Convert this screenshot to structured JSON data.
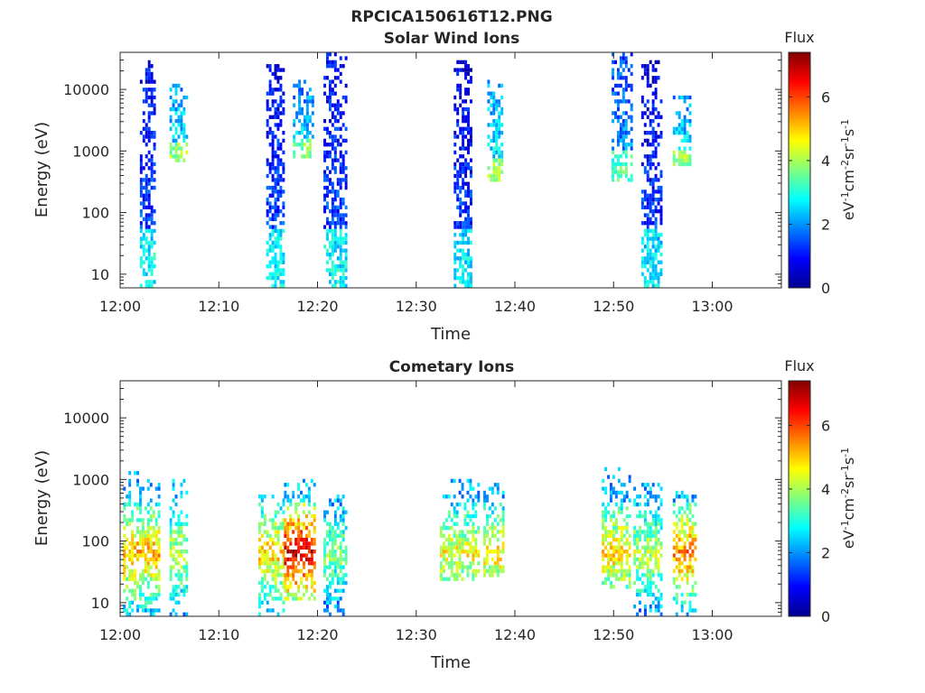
{
  "figure": {
    "title": "RPCICA150616T12.PNG"
  },
  "colorbar": {
    "label": "Flux",
    "ticks": [
      "0",
      "2",
      "4",
      "6"
    ],
    "tick_values": [
      0,
      2,
      4,
      6
    ],
    "range": [
      0,
      7.4
    ],
    "unit_parts": [
      "eV",
      "-1",
      "cm",
      "-2",
      "sr",
      "-1",
      "s",
      "-1"
    ]
  },
  "chart_data": [
    {
      "type": "heatmap",
      "title": "Solar Wind Ions",
      "xlabel": "Time",
      "ylabel": "Energy (eV)",
      "yscale": "log",
      "xlim": [
        0,
        67
      ],
      "ylim": [
        6,
        40000
      ],
      "x_ticks": [
        "12:00",
        "12:10",
        "12:20",
        "12:30",
        "12:40",
        "12:50",
        "13:00"
      ],
      "x_tick_values": [
        0,
        10,
        20,
        30,
        40,
        50,
        60
      ],
      "y_ticks": [
        "10",
        "100",
        "1000",
        "10000"
      ],
      "y_tick_values": [
        10,
        100,
        1000,
        10000
      ],
      "bursts": [
        {
          "t0": 2.0,
          "t1": 3.6,
          "emin": 6,
          "emax": 28000,
          "flux": 1.6
        },
        {
          "t0": 5.0,
          "t1": 6.8,
          "emin": 600,
          "emax": 11000,
          "flux": 2.8
        },
        {
          "t0": 14.8,
          "t1": 16.6,
          "emin": 6,
          "emax": 25000,
          "flux": 1.6
        },
        {
          "t0": 17.5,
          "t1": 19.5,
          "emin": 700,
          "emax": 14000,
          "flux": 2.6
        },
        {
          "t0": 20.6,
          "t1": 22.8,
          "emin": 6,
          "emax": 36000,
          "flux": 1.6
        },
        {
          "t0": 33.8,
          "t1": 35.6,
          "emin": 6,
          "emax": 27000,
          "flux": 1.5
        },
        {
          "t0": 37.2,
          "t1": 38.6,
          "emin": 280,
          "emax": 14000,
          "flux": 2.8
        },
        {
          "t0": 49.8,
          "t1": 51.8,
          "emin": 300,
          "emax": 36000,
          "flux": 2.2
        },
        {
          "t0": 52.8,
          "t1": 54.8,
          "emin": 6,
          "emax": 27000,
          "flux": 1.5
        },
        {
          "t0": 56.0,
          "t1": 57.8,
          "emin": 500,
          "emax": 7000,
          "flux": 2.8
        }
      ]
    },
    {
      "type": "heatmap",
      "title": "Cometary Ions",
      "xlabel": "Time",
      "ylabel": "Energy (eV)",
      "yscale": "log",
      "xlim": [
        0,
        67
      ],
      "ylim": [
        6,
        40000
      ],
      "x_ticks": [
        "12:00",
        "12:10",
        "12:20",
        "12:30",
        "12:40",
        "12:50",
        "13:00"
      ],
      "x_tick_values": [
        0,
        10,
        20,
        30,
        40,
        50,
        60
      ],
      "y_ticks": [
        "10",
        "100",
        "1000",
        "10000"
      ],
      "y_tick_values": [
        10,
        100,
        1000,
        10000
      ],
      "bursts": [
        {
          "t0": 0.3,
          "t1": 4.0,
          "emin": 6,
          "emax": 1300,
          "flux": 5.2
        },
        {
          "t0": 5.0,
          "t1": 6.8,
          "emin": 6,
          "emax": 900,
          "flux": 4.2
        },
        {
          "t0": 14.0,
          "t1": 16.6,
          "emin": 6,
          "emax": 550,
          "flux": 5.0
        },
        {
          "t0": 16.6,
          "t1": 19.6,
          "emin": 10,
          "emax": 900,
          "flux": 6.8
        },
        {
          "t0": 20.6,
          "t1": 22.8,
          "emin": 6,
          "emax": 500,
          "flux": 3.8
        },
        {
          "t0": 32.4,
          "t1": 36.2,
          "emin": 20,
          "emax": 950,
          "flux": 4.6
        },
        {
          "t0": 36.8,
          "t1": 38.8,
          "emin": 25,
          "emax": 800,
          "flux": 4.8
        },
        {
          "t0": 48.8,
          "t1": 51.6,
          "emin": 15,
          "emax": 1500,
          "flux": 5.0
        },
        {
          "t0": 52.0,
          "t1": 54.8,
          "emin": 6,
          "emax": 1000,
          "flux": 4.2
        },
        {
          "t0": 56.0,
          "t1": 58.4,
          "emin": 6,
          "emax": 650,
          "flux": 5.6
        }
      ]
    }
  ]
}
